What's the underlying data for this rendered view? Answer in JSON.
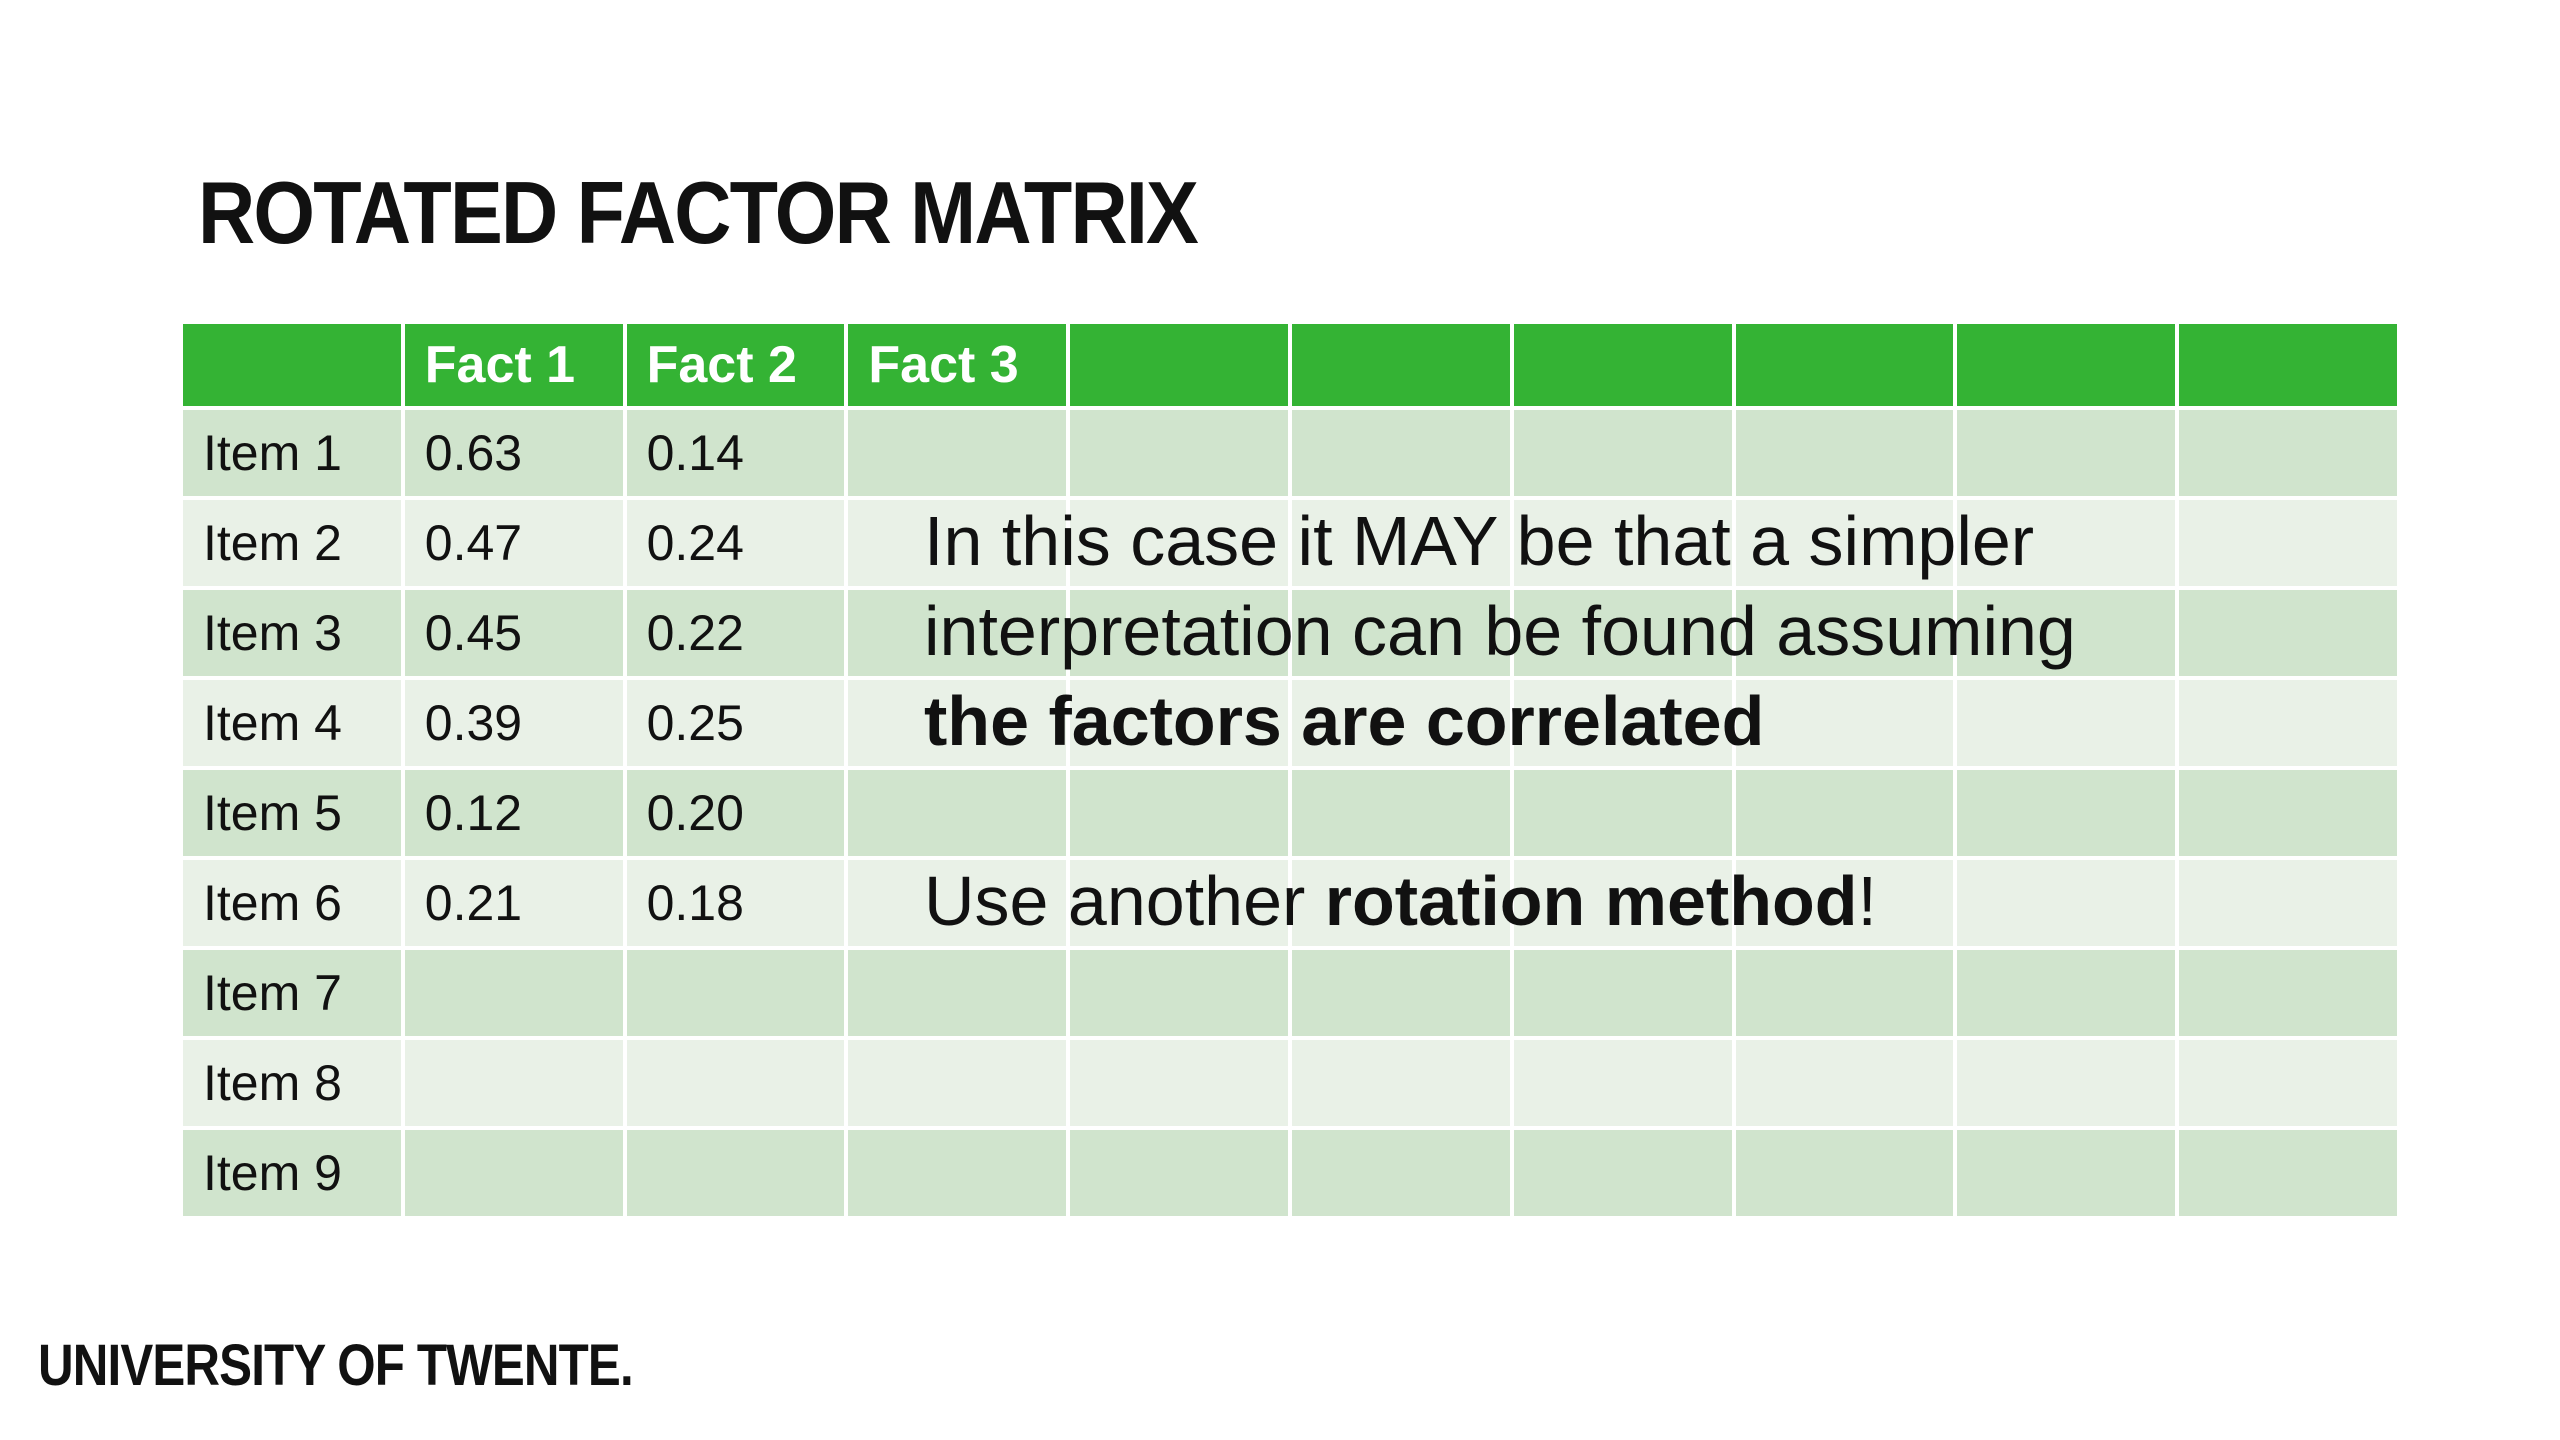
{
  "title": "ROTATED FACTOR MATRIX",
  "table": {
    "headers": [
      "",
      "Fact 1",
      "Fact 2",
      "Fact 3",
      "",
      "",
      "",
      "",
      "",
      ""
    ],
    "rows": [
      [
        "Item 1",
        "0.63",
        "0.14",
        "",
        "",
        "",
        "",
        "",
        "",
        ""
      ],
      [
        "Item 2",
        "0.47",
        "0.24",
        "",
        "",
        "",
        "",
        "",
        "",
        ""
      ],
      [
        "Item 3",
        "0.45",
        "0.22",
        "",
        "",
        "",
        "",
        "",
        "",
        ""
      ],
      [
        "Item 4",
        "0.39",
        "0.25",
        "",
        "",
        "",
        "",
        "",
        "",
        ""
      ],
      [
        "Item 5",
        "0.12",
        "0.20",
        "",
        "",
        "",
        "",
        "",
        "",
        ""
      ],
      [
        "Item 6",
        "0.21",
        "0.18",
        "",
        "",
        "",
        "",
        "",
        "",
        ""
      ],
      [
        "Item 7",
        "",
        "",
        "",
        "",
        "",
        "",
        "",
        "",
        ""
      ],
      [
        "Item 8",
        "",
        "",
        "",
        "",
        "",
        "",
        "",
        "",
        ""
      ],
      [
        "Item 9",
        "",
        "",
        "",
        "",
        "",
        "",
        "",
        "",
        ""
      ]
    ]
  },
  "note": {
    "line1": "In this case it MAY be that a simpler",
    "line2": "interpretation can be found assuming",
    "line3_bold": "the factors are correlated",
    "action_prefix": "Use another ",
    "action_bold": "rotation method",
    "action_suffix": "!"
  },
  "footer": {
    "logo_text": "UNIVERSITY OF TWENTE."
  },
  "colors": {
    "header_green": "#34b334",
    "row_dark": "#d0e4cd",
    "row_light": "#e9f1e7"
  }
}
